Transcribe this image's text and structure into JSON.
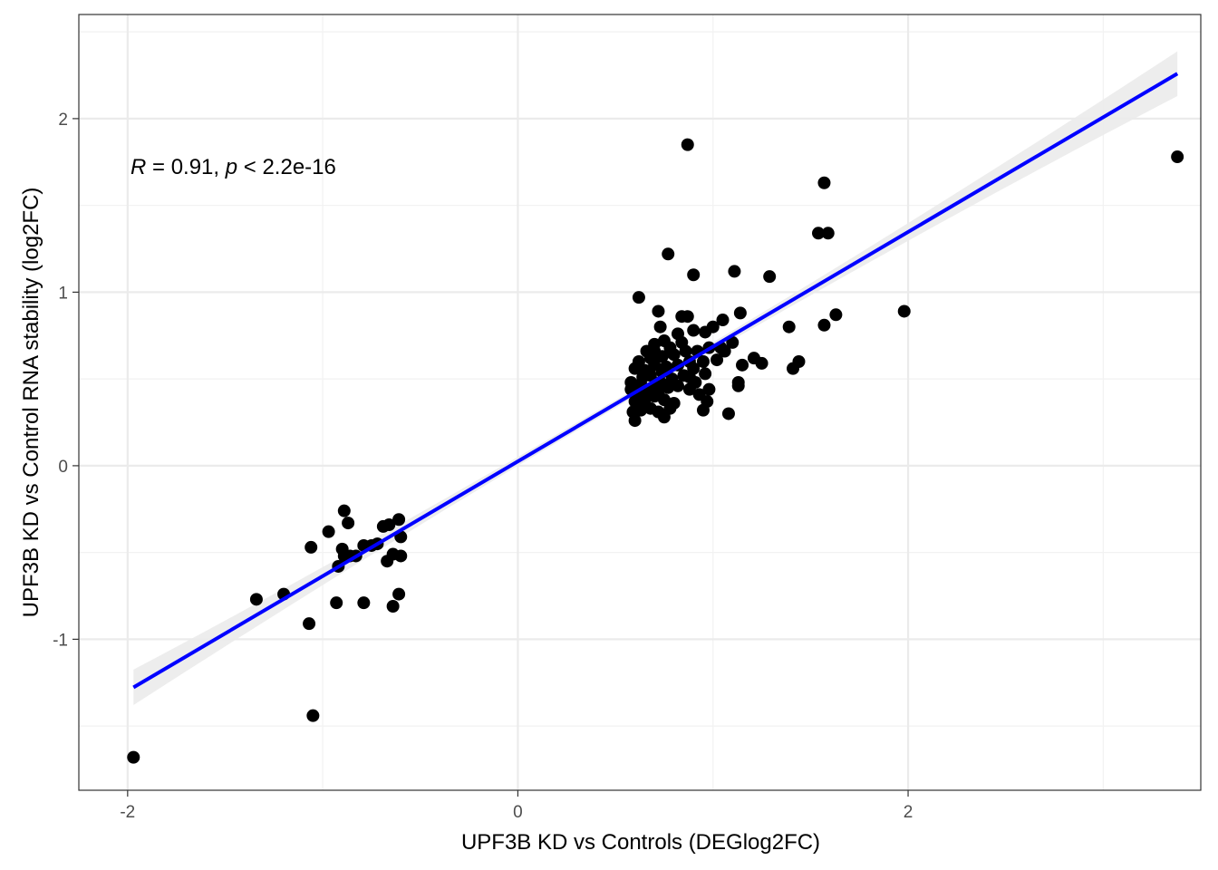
{
  "chart_data": {
    "type": "scatter",
    "xlabel": "UPF3B KD vs Controls (DEGlog2FC)",
    "ylabel": "UPF3B KD vs Control RNA stability (log2FC)",
    "xlim": [
      -2.25,
      3.5
    ],
    "ylim": [
      -1.87,
      2.6
    ],
    "xticks": [
      -2,
      0,
      2
    ],
    "xtick_labels": [
      "-2",
      "0",
      "2"
    ],
    "yticks": [
      -1,
      0,
      1,
      2
    ],
    "ytick_labels": [
      "-1",
      "0",
      "1",
      "2"
    ],
    "grid": true,
    "annotation": {
      "r_symbol": "R",
      "r_text": " = 0.91, ",
      "p_symbol": "p",
      "p_text": " < 2.2e-16"
    },
    "regression": {
      "slope": 0.661,
      "intercept": 0.025,
      "x_range": [
        -1.97,
        3.38
      ],
      "color": "#0000ff",
      "ci_color": "#ebebeb"
    },
    "point_color": "#000000",
    "points": [
      [
        -1.97,
        -1.68
      ],
      [
        -1.05,
        -1.44
      ],
      [
        -1.07,
        -0.91
      ],
      [
        -1.34,
        -0.77
      ],
      [
        -1.2,
        -0.74
      ],
      [
        -1.06,
        -0.47
      ],
      [
        -0.97,
        -0.38
      ],
      [
        -0.89,
        -0.26
      ],
      [
        -0.87,
        -0.33
      ],
      [
        -0.9,
        -0.48
      ],
      [
        -0.92,
        -0.58
      ],
      [
        -0.89,
        -0.52
      ],
      [
        -0.86,
        -0.52
      ],
      [
        -0.83,
        -0.52
      ],
      [
        -0.79,
        -0.46
      ],
      [
        -0.75,
        -0.46
      ],
      [
        -0.72,
        -0.45
      ],
      [
        -0.69,
        -0.35
      ],
      [
        -0.66,
        -0.34
      ],
      [
        -0.61,
        -0.31
      ],
      [
        -0.6,
        -0.41
      ],
      [
        -0.64,
        -0.51
      ],
      [
        -0.6,
        -0.52
      ],
      [
        -0.67,
        -0.55
      ],
      [
        -0.61,
        -0.74
      ],
      [
        -0.64,
        -0.81
      ],
      [
        -0.79,
        -0.79
      ],
      [
        -0.93,
        -0.79
      ],
      [
        0.87,
        1.85
      ],
      [
        3.38,
        1.78
      ],
      [
        1.57,
        1.63
      ],
      [
        1.54,
        1.34
      ],
      [
        1.59,
        1.34
      ],
      [
        0.77,
        1.22
      ],
      [
        1.11,
        1.12
      ],
      [
        0.9,
        1.1
      ],
      [
        1.29,
        1.09
      ],
      [
        0.62,
        0.97
      ],
      [
        1.98,
        0.89
      ],
      [
        0.72,
        0.89
      ],
      [
        0.84,
        0.86
      ],
      [
        0.87,
        0.86
      ],
      [
        1.63,
        0.87
      ],
      [
        1.57,
        0.81
      ],
      [
        1.39,
        0.8
      ],
      [
        1.14,
        0.88
      ],
      [
        1.05,
        0.84
      ],
      [
        0.73,
        0.8
      ],
      [
        0.9,
        0.78
      ],
      [
        0.96,
        0.77
      ],
      [
        1.0,
        0.8
      ],
      [
        0.75,
        0.72
      ],
      [
        0.82,
        0.76
      ],
      [
        0.7,
        0.7
      ],
      [
        0.78,
        0.68
      ],
      [
        0.86,
        0.66
      ],
      [
        0.92,
        0.66
      ],
      [
        0.98,
        0.68
      ],
      [
        1.04,
        0.68
      ],
      [
        1.1,
        0.71
      ],
      [
        1.06,
        0.66
      ],
      [
        0.66,
        0.66
      ],
      [
        0.68,
        0.62
      ],
      [
        0.74,
        0.63
      ],
      [
        0.8,
        0.64
      ],
      [
        0.88,
        0.6
      ],
      [
        0.95,
        0.6
      ],
      [
        1.02,
        0.61
      ],
      [
        0.62,
        0.6
      ],
      [
        0.6,
        0.56
      ],
      [
        0.65,
        0.55
      ],
      [
        0.7,
        0.58
      ],
      [
        0.76,
        0.57
      ],
      [
        0.82,
        0.58
      ],
      [
        0.9,
        0.56
      ],
      [
        1.21,
        0.62
      ],
      [
        1.25,
        0.59
      ],
      [
        1.15,
        0.58
      ],
      [
        1.44,
        0.6
      ],
      [
        1.41,
        0.56
      ],
      [
        0.58,
        0.48
      ],
      [
        0.63,
        0.47
      ],
      [
        0.68,
        0.52
      ],
      [
        0.73,
        0.48
      ],
      [
        0.79,
        0.5
      ],
      [
        0.85,
        0.52
      ],
      [
        0.91,
        0.48
      ],
      [
        0.96,
        0.53
      ],
      [
        1.13,
        0.48
      ],
      [
        1.13,
        0.46
      ],
      [
        0.58,
        0.44
      ],
      [
        0.62,
        0.4
      ],
      [
        0.67,
        0.44
      ],
      [
        0.72,
        0.42
      ],
      [
        0.77,
        0.45
      ],
      [
        0.82,
        0.46
      ],
      [
        0.88,
        0.44
      ],
      [
        0.93,
        0.41
      ],
      [
        0.98,
        0.44
      ],
      [
        0.6,
        0.37
      ],
      [
        0.65,
        0.36
      ],
      [
        0.7,
        0.4
      ],
      [
        0.75,
        0.38
      ],
      [
        0.8,
        0.36
      ],
      [
        0.97,
        0.37
      ],
      [
        0.59,
        0.31
      ],
      [
        0.63,
        0.32
      ],
      [
        0.68,
        0.33
      ],
      [
        0.72,
        0.31
      ],
      [
        0.78,
        0.33
      ],
      [
        0.95,
        0.32
      ],
      [
        1.08,
        0.3
      ],
      [
        0.6,
        0.26
      ],
      [
        0.75,
        0.28
      ],
      [
        0.66,
        0.41
      ],
      [
        0.88,
        0.51
      ],
      [
        0.7,
        0.66
      ],
      [
        0.84,
        0.71
      ],
      [
        0.64,
        0.51
      ],
      [
        0.69,
        0.45
      ],
      [
        0.74,
        0.54
      ]
    ]
  }
}
